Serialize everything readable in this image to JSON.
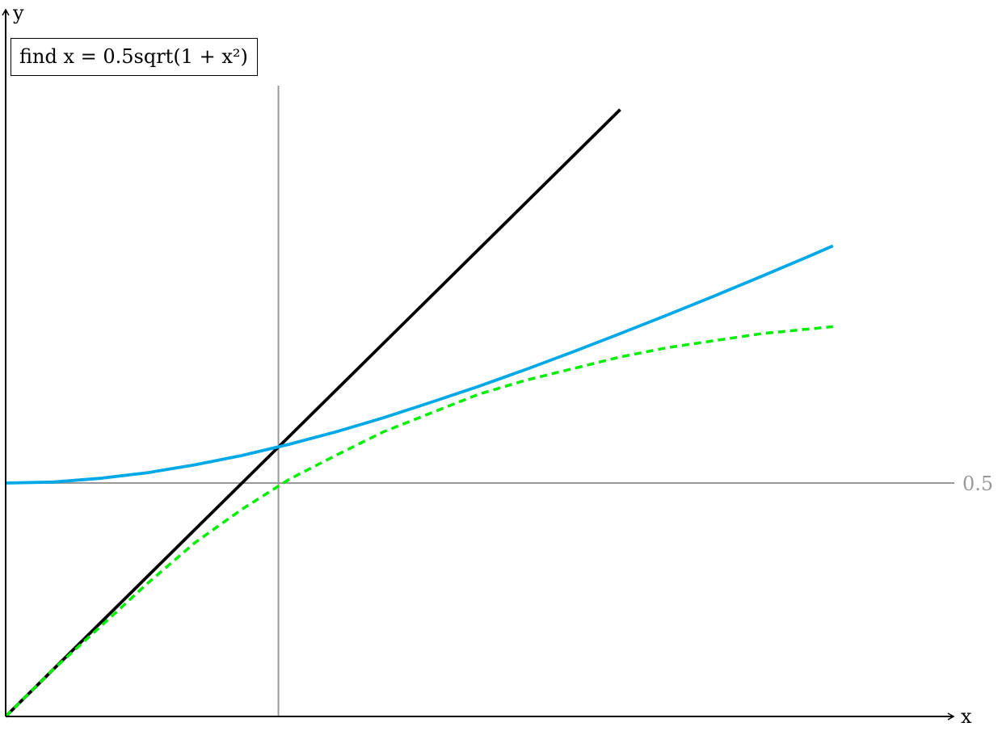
{
  "chart_data": {
    "type": "line",
    "title": "find x = 0.5sqrt(1 + x²)",
    "xlabel": "x",
    "ylabel": "y",
    "xlim": [
      0,
      1.75
    ],
    "ylim": [
      0,
      1.3
    ],
    "grid": false,
    "reference_lines": {
      "horizontal": {
        "y": 0.5,
        "label": "0.5"
      },
      "vertical": {
        "x": 0.577
      }
    },
    "series": [
      {
        "color": "#000000",
        "style": "solid",
        "x": [
          0,
          1.3
        ],
        "y": [
          0,
          1.3
        ]
      },
      {
        "color": "#00a8e8",
        "style": "solid",
        "x": [
          0,
          0.1,
          0.2,
          0.3,
          0.4,
          0.5,
          0.6,
          0.7,
          0.8,
          0.9,
          1.0,
          1.1,
          1.2,
          1.3,
          1.4,
          1.5,
          1.6,
          1.7,
          1.75
        ],
        "y": [
          0.5,
          0.502,
          0.51,
          0.522,
          0.539,
          0.559,
          0.583,
          0.61,
          0.64,
          0.673,
          0.707,
          0.743,
          0.781,
          0.82,
          0.86,
          0.901,
          0.943,
          0.986,
          1.008
        ]
      },
      {
        "color": "#00ee00",
        "style": "dashed",
        "x": [
          0,
          0.1,
          0.2,
          0.3,
          0.4,
          0.5,
          0.6,
          0.7,
          0.8,
          0.9,
          1.0,
          1.1,
          1.2,
          1.3,
          1.4,
          1.5,
          1.6,
          1.7,
          1.75
        ],
        "y": [
          0,
          0.1,
          0.192,
          0.285,
          0.372,
          0.444,
          0.508,
          0.56,
          0.61,
          0.65,
          0.69,
          0.72,
          0.745,
          0.77,
          0.79,
          0.805,
          0.82,
          0.83,
          0.835
        ]
      }
    ]
  }
}
